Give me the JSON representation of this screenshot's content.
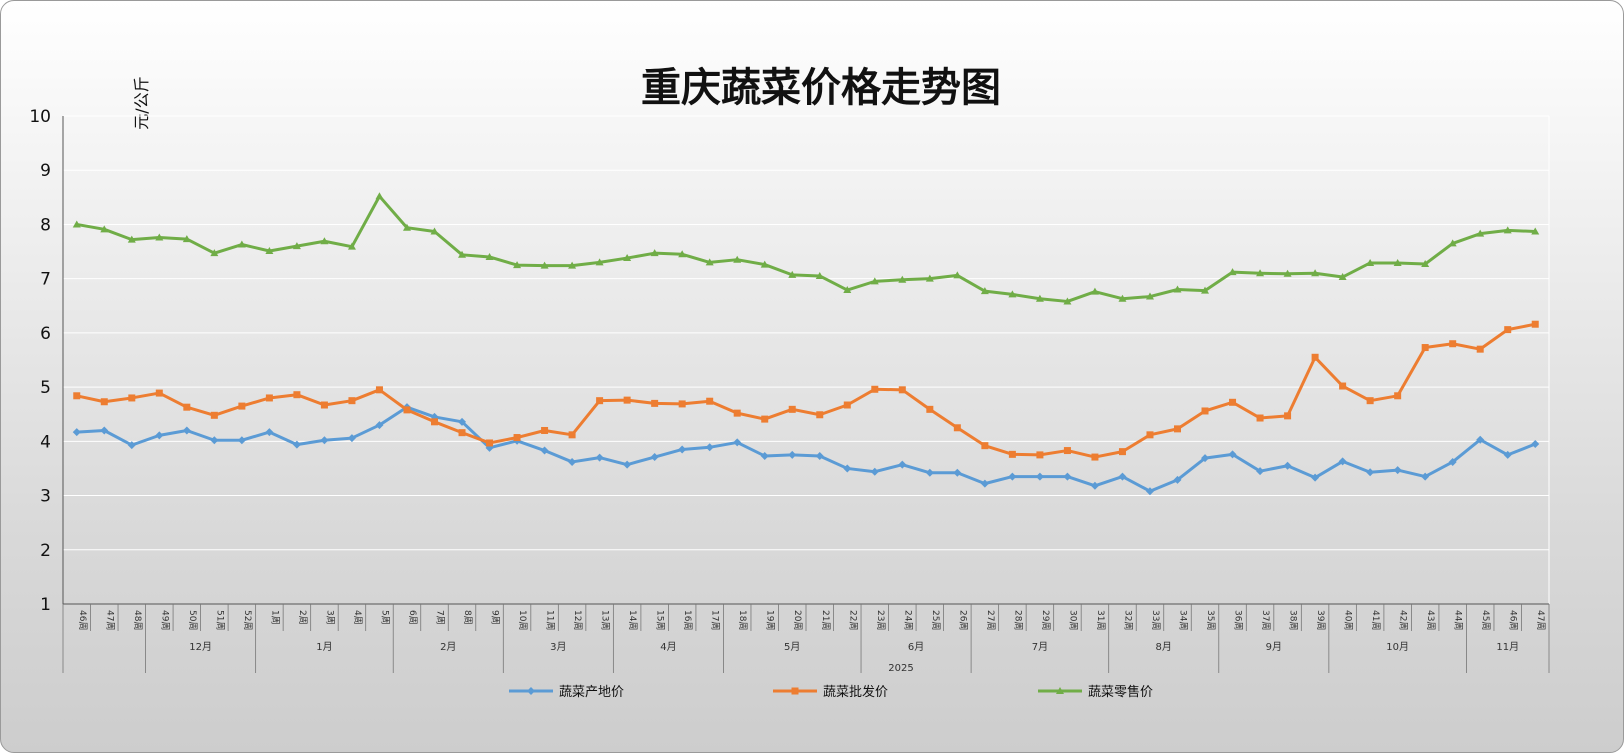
{
  "chart_data": {
    "type": "line",
    "title": "重庆蔬菜价格走势图",
    "ylabel": "元/公斤",
    "ylim": [
      1,
      10
    ],
    "yticks": [
      1,
      2,
      3,
      4,
      5,
      6,
      7,
      8,
      9,
      10
    ],
    "grid": true,
    "legend_position": "bottom",
    "year_label": "2025",
    "categories": [
      "46周",
      "47周",
      "48周",
      "49周",
      "50周",
      "51周",
      "52周",
      "1周",
      "2周",
      "3周",
      "4周",
      "5周",
      "6周",
      "7周",
      "8周",
      "9周",
      "10周",
      "11周",
      "12周",
      "13周",
      "14周",
      "15周",
      "16周",
      "17周",
      "18周",
      "19周",
      "20周",
      "21周",
      "22周",
      "23周",
      "24周",
      "25周",
      "26周",
      "27周",
      "28周",
      "29周",
      "30周",
      "31周",
      "32周",
      "33周",
      "34周",
      "35周",
      "36周",
      "37周",
      "38周",
      "39周",
      "40周",
      "41周",
      "42周",
      "43周",
      "44周",
      "45周",
      "46周",
      "47周"
    ],
    "month_groups": [
      {
        "label": "",
        "count": 3
      },
      {
        "label": "12月",
        "count": 4
      },
      {
        "label": "1月",
        "count": 5
      },
      {
        "label": "2月",
        "count": 4
      },
      {
        "label": "3月",
        "count": 4
      },
      {
        "label": "4月",
        "count": 4
      },
      {
        "label": "5月",
        "count": 5
      },
      {
        "label": "6月",
        "count": 4
      },
      {
        "label": "7月",
        "count": 5
      },
      {
        "label": "8月",
        "count": 4
      },
      {
        "label": "9月",
        "count": 4
      },
      {
        "label": "10月",
        "count": 5
      },
      {
        "label": "11月",
        "count": 3
      }
    ],
    "series": [
      {
        "name": "蔬菜产地价",
        "color": "#5b9bd5",
        "marker": "diamond",
        "values": [
          4.17,
          4.2,
          3.93,
          4.11,
          4.2,
          4.02,
          4.02,
          4.17,
          3.94,
          4.02,
          4.06,
          4.3,
          4.63,
          4.45,
          4.36,
          3.88,
          4.01,
          3.83,
          3.62,
          3.7,
          3.57,
          3.71,
          3.85,
          3.89,
          3.98,
          3.73,
          3.75,
          3.73,
          3.5,
          3.44,
          3.57,
          3.42,
          3.42,
          3.22,
          3.35,
          3.35,
          3.35,
          3.18,
          3.35,
          3.08,
          3.29,
          3.69,
          3.76,
          3.45,
          3.55,
          3.33,
          3.63,
          3.43,
          3.47,
          3.35,
          3.62,
          4.03,
          3.75,
          3.95
        ]
      },
      {
        "name": "蔬菜批发价",
        "color": "#ed7d31",
        "marker": "square",
        "values": [
          4.84,
          4.73,
          4.8,
          4.89,
          4.63,
          4.48,
          4.65,
          4.8,
          4.86,
          4.67,
          4.75,
          4.95,
          4.58,
          4.36,
          4.16,
          3.97,
          4.07,
          4.2,
          4.12,
          4.75,
          4.76,
          4.7,
          4.69,
          4.74,
          4.52,
          4.41,
          4.59,
          4.49,
          4.67,
          4.96,
          4.95,
          4.59,
          4.25,
          3.92,
          3.76,
          3.75,
          3.83,
          3.71,
          3.81,
          4.12,
          4.23,
          4.56,
          4.72,
          4.43,
          4.47,
          5.55,
          5.02,
          4.75,
          4.84,
          5.73,
          5.8,
          5.7,
          6.06,
          6.16
        ]
      },
      {
        "name": "蔬菜零售价",
        "color": "#70ad47",
        "marker": "triangle",
        "values": [
          8.0,
          7.91,
          7.72,
          7.76,
          7.73,
          7.47,
          7.63,
          7.51,
          7.6,
          7.69,
          7.59,
          8.52,
          7.94,
          7.87,
          7.44,
          7.4,
          7.25,
          7.24,
          7.24,
          7.3,
          7.38,
          7.47,
          7.45,
          7.3,
          7.35,
          7.26,
          7.07,
          7.05,
          6.79,
          6.95,
          6.98,
          7.0,
          7.06,
          6.77,
          6.71,
          6.63,
          6.58,
          6.76,
          6.63,
          6.67,
          6.8,
          6.78,
          7.12,
          7.1,
          7.09,
          7.1,
          7.03,
          7.29,
          7.29,
          7.27,
          7.65,
          7.83,
          7.89,
          7.87
        ]
      }
    ]
  }
}
